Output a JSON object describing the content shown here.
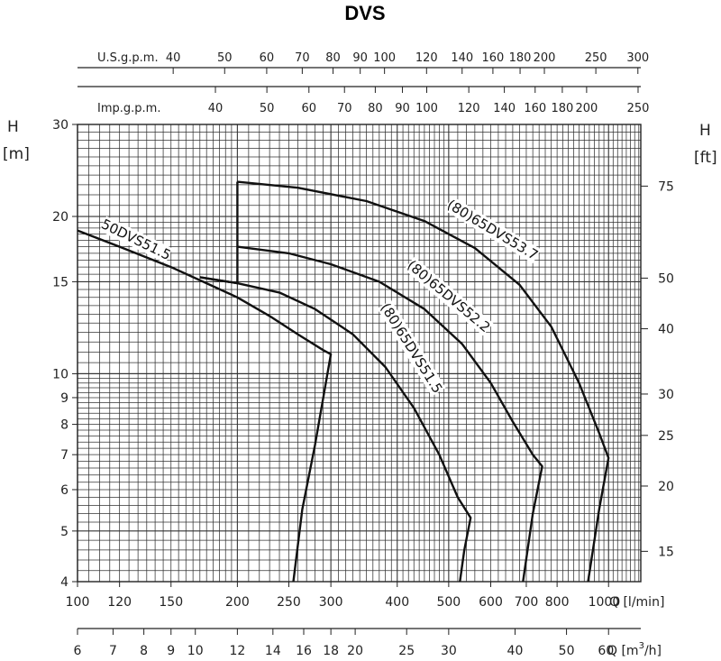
{
  "title": "DVS",
  "chart_data": {
    "type": "line",
    "x_scale": "log",
    "y_scale": "log",
    "grid": true,
    "x_primary": {
      "label": "Q [l/min]",
      "range": [
        100,
        1150
      ],
      "ticks": [
        100,
        120,
        150,
        200,
        250,
        300,
        400,
        500,
        600,
        700,
        800,
        1000
      ]
    },
    "x_m3h": {
      "label": "Q [m3/h]",
      "ticks": [
        6,
        7,
        8,
        9,
        10,
        12,
        14,
        16,
        18,
        20,
        25,
        30,
        40,
        50,
        60
      ]
    },
    "x_usgpm": {
      "label": "U.S.g.p.m.",
      "ticks": [
        40,
        50,
        60,
        70,
        80,
        90,
        100,
        120,
        140,
        160,
        180,
        200,
        250,
        300
      ]
    },
    "x_impgpm": {
      "label": "Imp.g.p.m.",
      "ticks": [
        40,
        50,
        60,
        70,
        80,
        90,
        100,
        120,
        140,
        160,
        180,
        200,
        250
      ]
    },
    "y_left": {
      "label_h": "H",
      "label_unit": "[m]",
      "range": [
        4,
        30
      ],
      "ticks": [
        4,
        5,
        6,
        7,
        8,
        9,
        10,
        15,
        20,
        30
      ]
    },
    "y_right": {
      "label_h": "H",
      "label_unit": "[ft]",
      "ticks": [
        15,
        20,
        25,
        30,
        40,
        50,
        75
      ]
    },
    "series": [
      {
        "name": "50DVS51.5",
        "points": [
          [
            100,
            18.8
          ],
          [
            120,
            17.5
          ],
          [
            150,
            16.0
          ],
          [
            175,
            14.9
          ],
          [
            200,
            14.0
          ],
          [
            230,
            12.9
          ],
          [
            260,
            11.9
          ],
          [
            290,
            11.1
          ],
          [
            300,
            10.9
          ],
          [
            280,
            7.3
          ],
          [
            265,
            5.5
          ],
          [
            255,
            4.0
          ]
        ]
      },
      {
        "name": "(80)65DVS51.5",
        "points": [
          [
            170,
            15.3
          ],
          [
            200,
            14.9
          ],
          [
            240,
            14.3
          ],
          [
            280,
            13.3
          ],
          [
            330,
            11.9
          ],
          [
            380,
            10.3
          ],
          [
            430,
            8.6
          ],
          [
            480,
            7.0
          ],
          [
            520,
            5.8
          ],
          [
            550,
            5.3
          ],
          [
            535,
            4.6
          ],
          [
            525,
            4.0
          ]
        ]
      },
      {
        "name": "(80)65DVS52.2",
        "points": [
          [
            200,
            17.5
          ],
          [
            250,
            17.0
          ],
          [
            300,
            16.2
          ],
          [
            370,
            15.0
          ],
          [
            450,
            13.3
          ],
          [
            530,
            11.4
          ],
          [
            600,
            9.6
          ],
          [
            660,
            8.1
          ],
          [
            720,
            7.0
          ],
          [
            750,
            6.65
          ],
          [
            720,
            5.4
          ],
          [
            690,
            4.0
          ]
        ]
      },
      {
        "name": "(80)65DVS53.7",
        "points": [
          [
            200,
            23.3
          ],
          [
            260,
            22.7
          ],
          [
            350,
            21.4
          ],
          [
            450,
            19.6
          ],
          [
            560,
            17.4
          ],
          [
            680,
            14.8
          ],
          [
            780,
            12.3
          ],
          [
            880,
            9.6
          ],
          [
            960,
            7.7
          ],
          [
            1000,
            6.9
          ],
          [
            960,
            5.5
          ],
          [
            915,
            4.0
          ]
        ]
      }
    ],
    "boundaries": [
      {
        "name": "min-head-line",
        "points": [
          [
            170,
            15.3
          ],
          [
            200,
            14.9
          ]
        ]
      },
      {
        "name": "left-limit-line",
        "points": [
          [
            200,
            14.9
          ],
          [
            200,
            23.3
          ]
        ]
      }
    ]
  }
}
